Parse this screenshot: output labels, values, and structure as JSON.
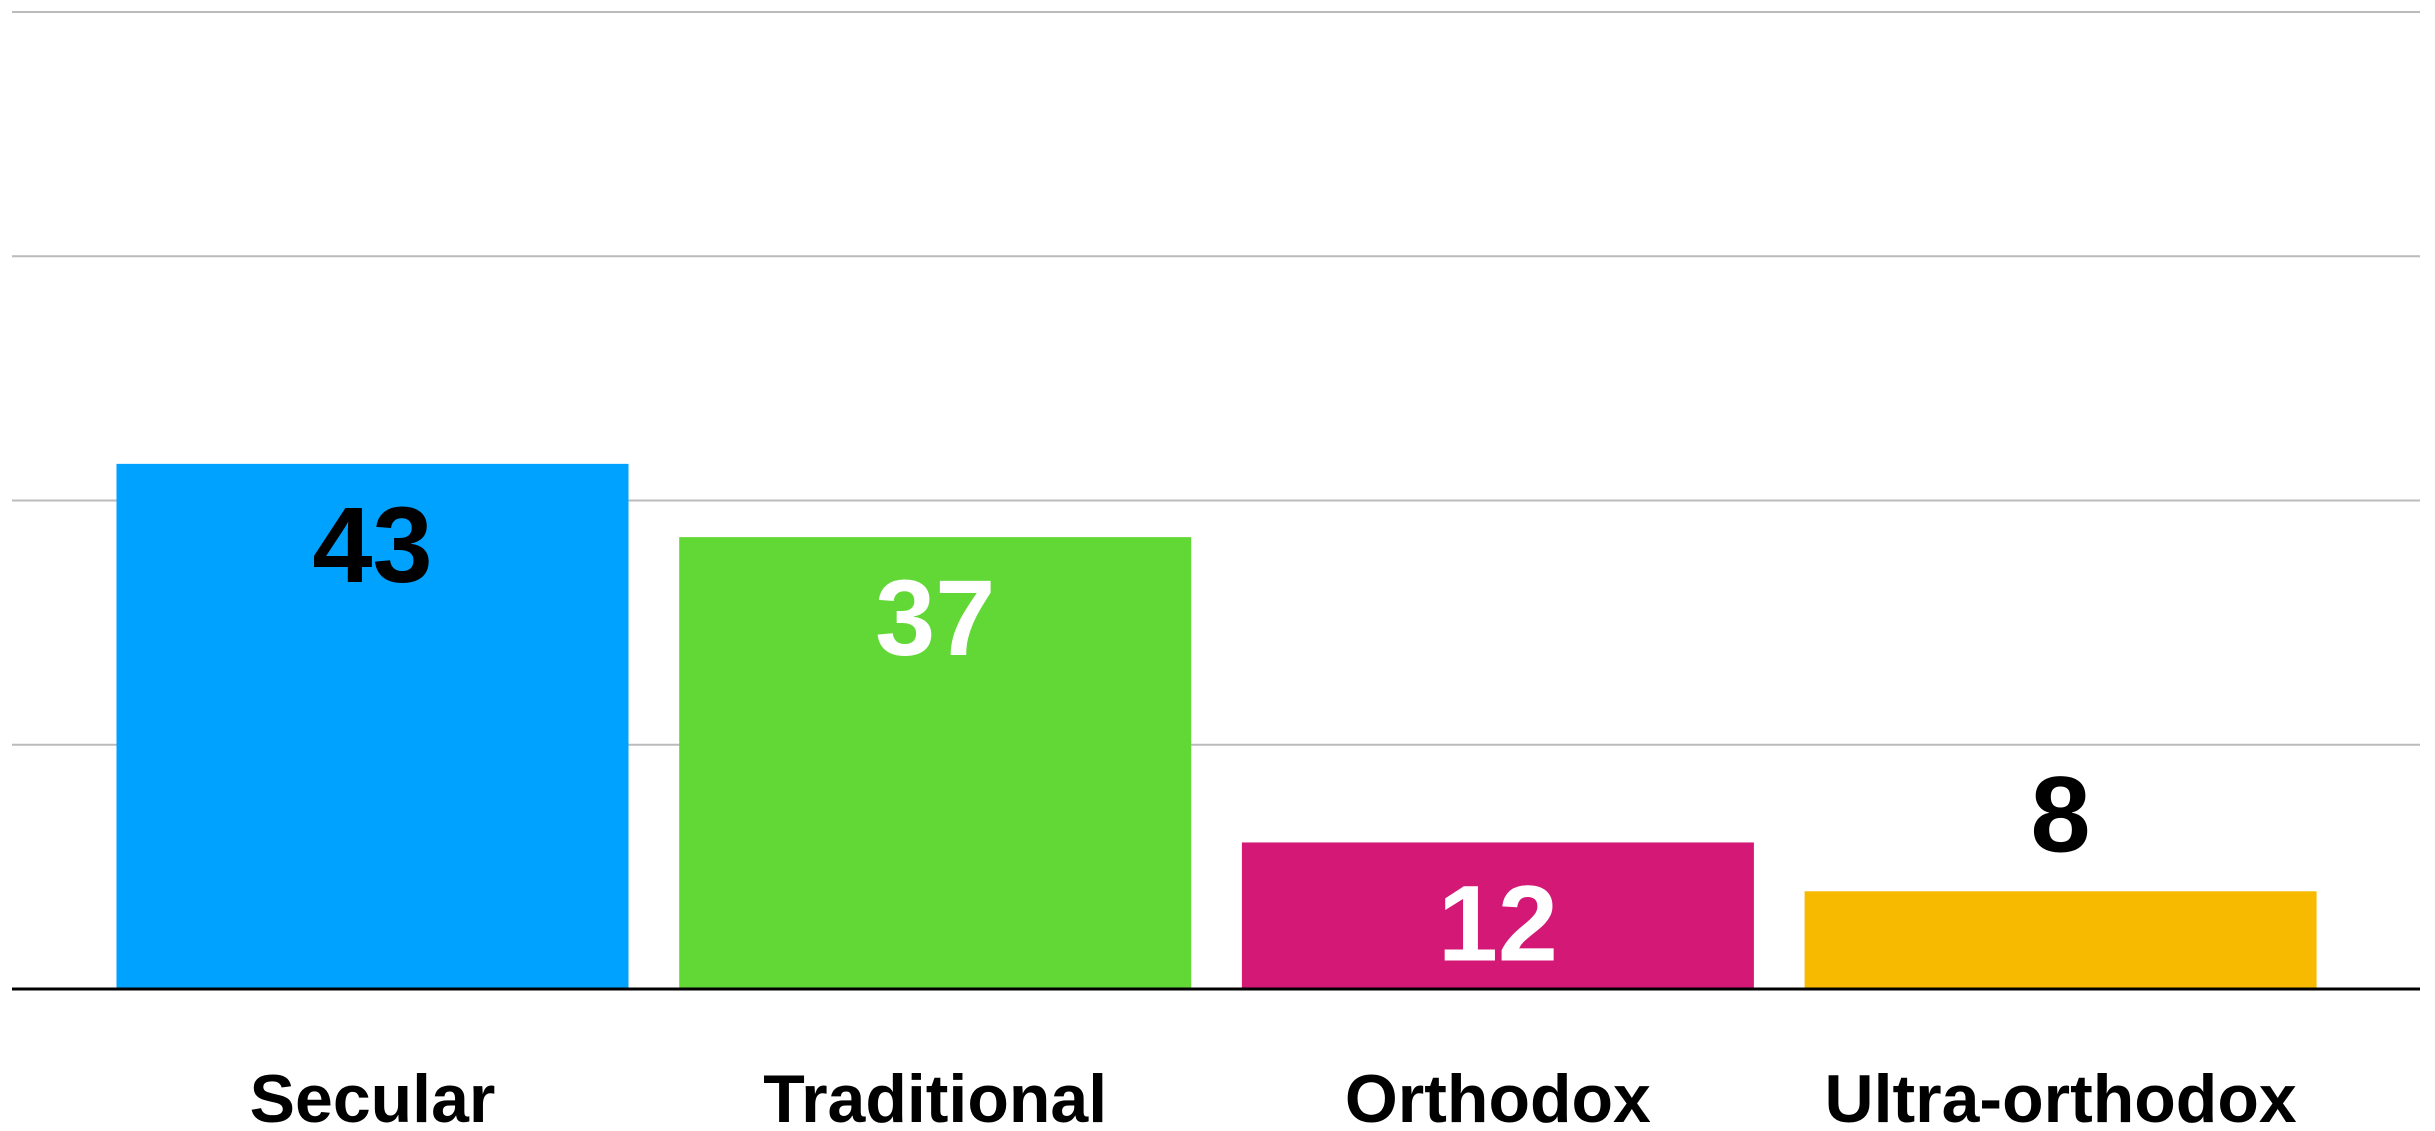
{
  "chart_data": {
    "type": "bar",
    "categories": [
      "Secular",
      "Traditional",
      "Orthodox",
      "Ultra-orthodox"
    ],
    "values": [
      43,
      37,
      12,
      8
    ],
    "colors": [
      "#00a2ff",
      "#61d836",
      "#d31876",
      "#f8ba00"
    ],
    "label_colors": [
      "#000000",
      "#ffffff",
      "#ffffff",
      "#000000"
    ],
    "ylim": [
      0,
      80
    ],
    "yticks": [
      0,
      20,
      40,
      60,
      80
    ],
    "grid": true
  }
}
